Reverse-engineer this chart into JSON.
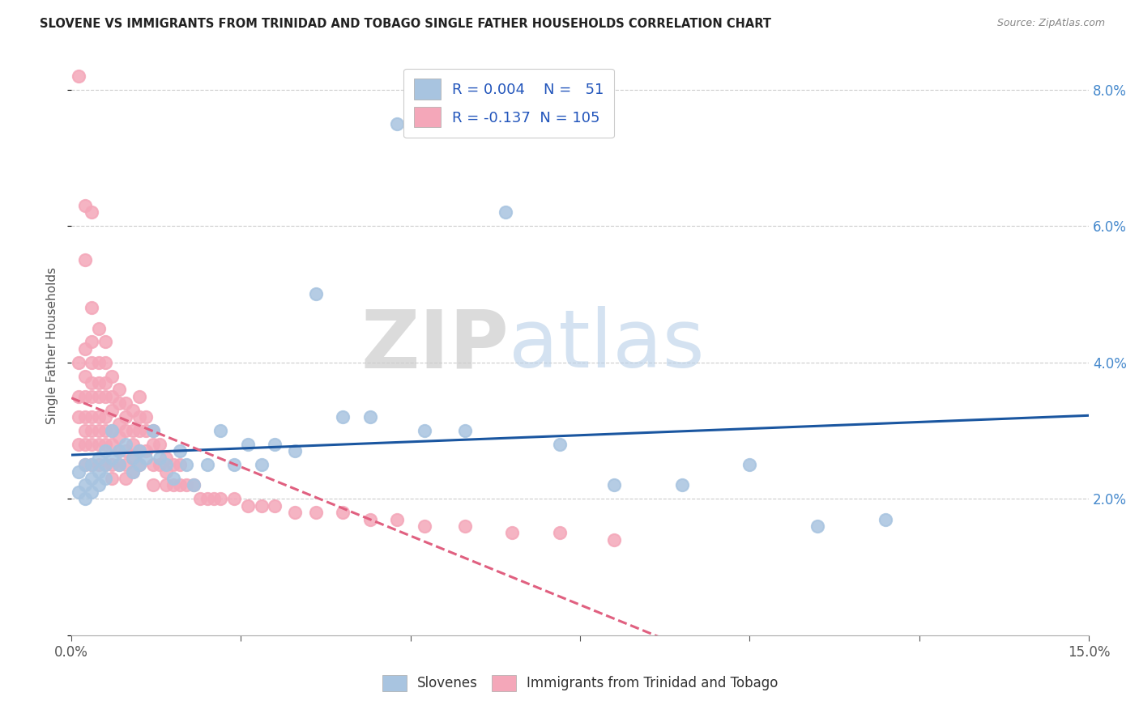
{
  "title": "SLOVENE VS IMMIGRANTS FROM TRINIDAD AND TOBAGO SINGLE FATHER HOUSEHOLDS CORRELATION CHART",
  "source": "Source: ZipAtlas.com",
  "ylabel": "Single Father Households",
  "x_min": 0.0,
  "x_max": 0.15,
  "y_min": 0.0,
  "y_max": 0.085,
  "blue_R": 0.004,
  "blue_N": 51,
  "pink_R": -0.137,
  "pink_N": 105,
  "blue_color": "#a8c4e0",
  "pink_color": "#f4a7b9",
  "blue_line_color": "#1a56a0",
  "pink_line_color": "#e06080",
  "legend_blue_label": "Slovenes",
  "legend_pink_label": "Immigrants from Trinidad and Tobago",
  "watermark_zip": "ZIP",
  "watermark_atlas": "atlas",
  "blue_x": [
    0.001,
    0.001,
    0.002,
    0.002,
    0.002,
    0.003,
    0.003,
    0.003,
    0.004,
    0.004,
    0.004,
    0.005,
    0.005,
    0.005,
    0.006,
    0.006,
    0.007,
    0.007,
    0.008,
    0.009,
    0.009,
    0.01,
    0.01,
    0.011,
    0.012,
    0.013,
    0.014,
    0.015,
    0.016,
    0.017,
    0.018,
    0.02,
    0.022,
    0.024,
    0.026,
    0.028,
    0.03,
    0.033,
    0.036,
    0.04,
    0.044,
    0.048,
    0.052,
    0.058,
    0.064,
    0.072,
    0.08,
    0.09,
    0.1,
    0.11,
    0.12
  ],
  "blue_y": [
    0.024,
    0.021,
    0.025,
    0.022,
    0.02,
    0.025,
    0.023,
    0.021,
    0.026,
    0.024,
    0.022,
    0.027,
    0.025,
    0.023,
    0.03,
    0.026,
    0.027,
    0.025,
    0.028,
    0.026,
    0.024,
    0.027,
    0.025,
    0.026,
    0.03,
    0.026,
    0.025,
    0.023,
    0.027,
    0.025,
    0.022,
    0.025,
    0.03,
    0.025,
    0.028,
    0.025,
    0.028,
    0.027,
    0.05,
    0.032,
    0.032,
    0.075,
    0.03,
    0.03,
    0.062,
    0.028,
    0.022,
    0.022,
    0.025,
    0.016,
    0.017
  ],
  "pink_x": [
    0.001,
    0.001,
    0.001,
    0.001,
    0.001,
    0.002,
    0.002,
    0.002,
    0.002,
    0.002,
    0.002,
    0.002,
    0.003,
    0.003,
    0.003,
    0.003,
    0.003,
    0.003,
    0.003,
    0.003,
    0.003,
    0.004,
    0.004,
    0.004,
    0.004,
    0.004,
    0.004,
    0.004,
    0.004,
    0.005,
    0.005,
    0.005,
    0.005,
    0.005,
    0.005,
    0.005,
    0.006,
    0.006,
    0.006,
    0.006,
    0.006,
    0.006,
    0.006,
    0.007,
    0.007,
    0.007,
    0.007,
    0.007,
    0.007,
    0.008,
    0.008,
    0.008,
    0.008,
    0.008,
    0.008,
    0.009,
    0.009,
    0.009,
    0.009,
    0.009,
    0.01,
    0.01,
    0.01,
    0.01,
    0.01,
    0.011,
    0.011,
    0.011,
    0.012,
    0.012,
    0.012,
    0.012,
    0.013,
    0.013,
    0.014,
    0.014,
    0.014,
    0.015,
    0.015,
    0.016,
    0.016,
    0.017,
    0.018,
    0.019,
    0.02,
    0.021,
    0.022,
    0.024,
    0.026,
    0.028,
    0.03,
    0.033,
    0.036,
    0.04,
    0.044,
    0.048,
    0.052,
    0.058,
    0.065,
    0.072,
    0.08,
    0.002,
    0.002,
    0.003,
    0.005
  ],
  "pink_y": [
    0.082,
    0.04,
    0.035,
    0.032,
    0.028,
    0.042,
    0.038,
    0.035,
    0.032,
    0.03,
    0.028,
    0.025,
    0.048,
    0.043,
    0.04,
    0.037,
    0.035,
    0.032,
    0.03,
    0.028,
    0.025,
    0.045,
    0.04,
    0.037,
    0.035,
    0.032,
    0.03,
    0.028,
    0.025,
    0.04,
    0.037,
    0.035,
    0.032,
    0.03,
    0.028,
    0.025,
    0.038,
    0.035,
    0.033,
    0.03,
    0.028,
    0.025,
    0.023,
    0.036,
    0.034,
    0.031,
    0.029,
    0.027,
    0.025,
    0.034,
    0.032,
    0.03,
    0.027,
    0.025,
    0.023,
    0.033,
    0.03,
    0.028,
    0.026,
    0.024,
    0.035,
    0.032,
    0.03,
    0.027,
    0.025,
    0.032,
    0.03,
    0.027,
    0.03,
    0.028,
    0.025,
    0.022,
    0.028,
    0.025,
    0.026,
    0.024,
    0.022,
    0.025,
    0.022,
    0.025,
    0.022,
    0.022,
    0.022,
    0.02,
    0.02,
    0.02,
    0.02,
    0.02,
    0.019,
    0.019,
    0.019,
    0.018,
    0.018,
    0.018,
    0.017,
    0.017,
    0.016,
    0.016,
    0.015,
    0.015,
    0.014,
    0.063,
    0.055,
    0.062,
    0.043
  ]
}
